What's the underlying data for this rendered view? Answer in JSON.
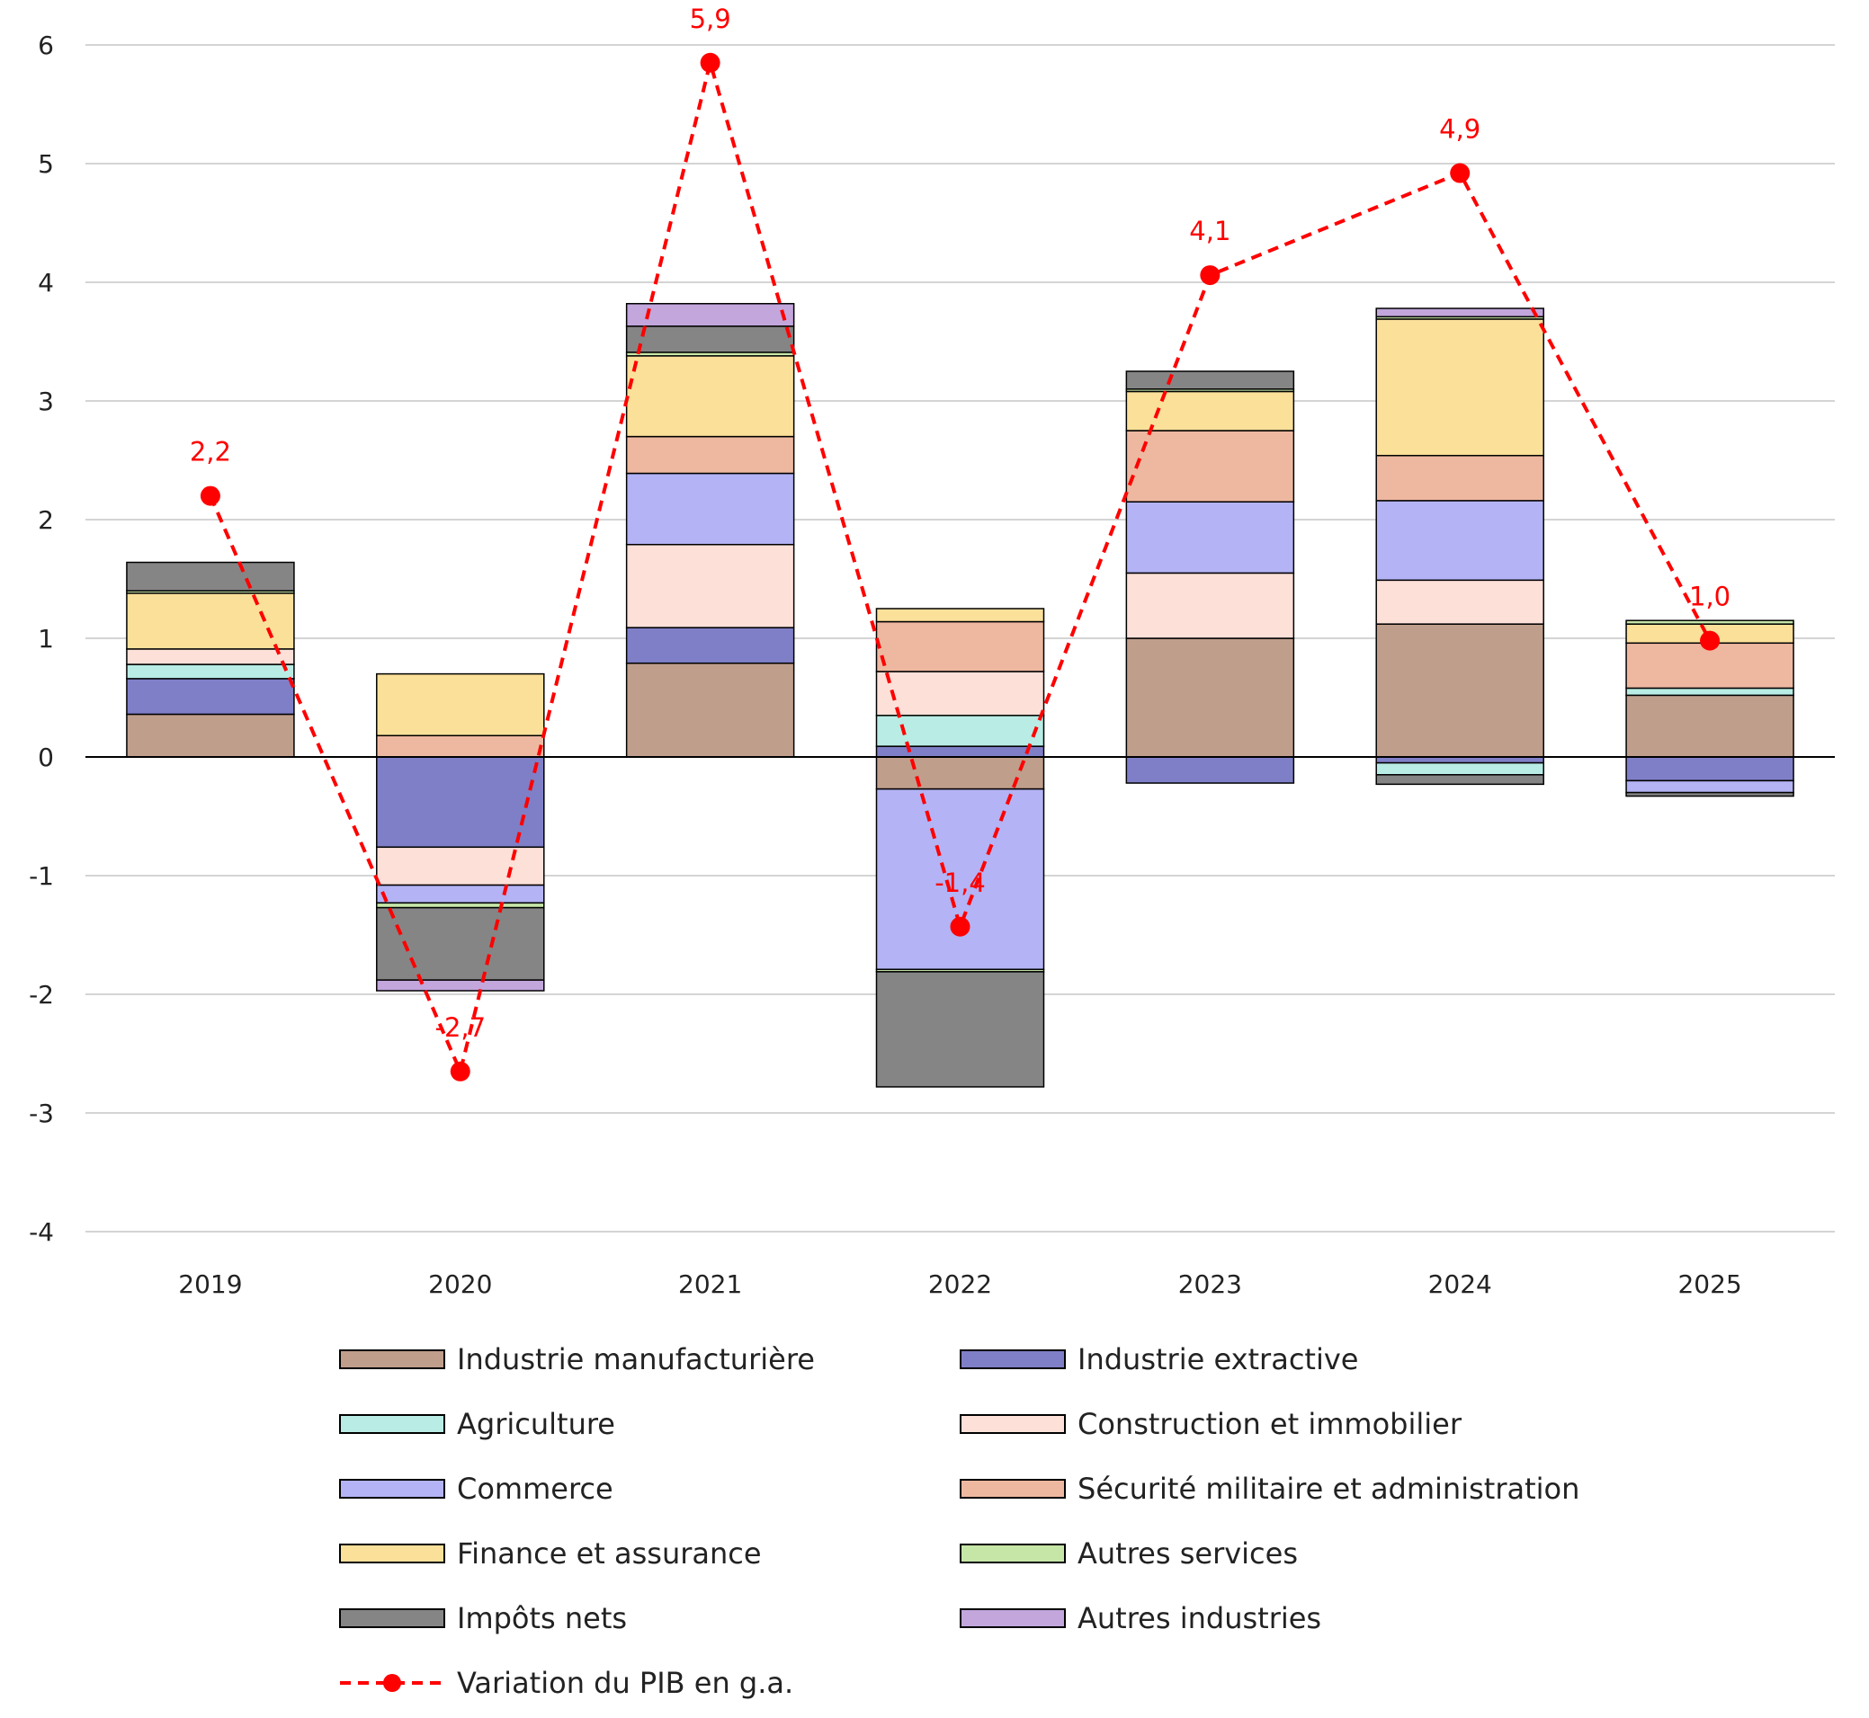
{
  "chart_data": {
    "type": "bar",
    "stacked": true,
    "title": "",
    "xlabel": "",
    "ylabel": "",
    "ylim": [
      -4,
      6
    ],
    "yticks": [
      -4,
      -3,
      -2,
      -1,
      0,
      1,
      2,
      3,
      4,
      5,
      6
    ],
    "ytick_labels": [
      "-4",
      "-3",
      "-2",
      "-1",
      "0",
      "1",
      "2",
      "3",
      "4",
      "5",
      "6"
    ],
    "grid": true,
    "legend_position": "bottom",
    "categories": [
      "2019",
      "2020",
      "2021",
      "2022",
      "2023",
      "2024",
      "2025"
    ],
    "series": [
      {
        "name": "Industrie manufacturière",
        "color": "#c09e8c",
        "values": [
          0.36,
          0.0,
          0.79,
          -0.27,
          1.0,
          1.12,
          0.52
        ]
      },
      {
        "name": "Industrie extractive",
        "color": "#7f7fc8",
        "values": [
          0.3,
          -0.76,
          0.3,
          0.09,
          -0.22,
          -0.05,
          -0.2
        ]
      },
      {
        "name": "Agriculture",
        "color": "#b8ece4",
        "values": [
          0.12,
          0.0,
          0.0,
          0.26,
          0.0,
          -0.1,
          0.06
        ]
      },
      {
        "name": "Construction et immobilier",
        "color": "#fde0d8",
        "values": [
          0.13,
          -0.32,
          0.7,
          0.37,
          0.55,
          0.37,
          0.0
        ]
      },
      {
        "name": "Commerce",
        "color": "#b3b3f5",
        "values": [
          0.0,
          -0.15,
          0.6,
          -1.52,
          0.6,
          0.67,
          -0.1
        ]
      },
      {
        "name": "Sécurité militaire et administration",
        "color": "#eeb8a0",
        "values": [
          0.0,
          0.18,
          0.31,
          0.42,
          0.6,
          0.38,
          0.38
        ]
      },
      {
        "name": "Finance et assurance",
        "color": "#fbe09a",
        "values": [
          0.47,
          0.52,
          0.68,
          0.11,
          0.33,
          1.15,
          0.16
        ]
      },
      {
        "name": "Autres services",
        "color": "#c6e6a8",
        "values": [
          0.02,
          -0.04,
          0.03,
          -0.02,
          0.02,
          0.02,
          0.03
        ]
      },
      {
        "name": "Impôts nets",
        "color": "#858585",
        "values": [
          0.24,
          -0.61,
          0.22,
          -0.97,
          0.15,
          -0.08,
          -0.03
        ]
      },
      {
        "name": "Autres industries",
        "color": "#c2a6dc",
        "values": [
          0.0,
          -0.09,
          0.19,
          0.0,
          0.0,
          0.07,
          0.0
        ]
      }
    ],
    "line_series": {
      "name": "Variation du PIB en g.a.",
      "color": "#ff0000",
      "values": [
        2.2,
        -2.65,
        5.85,
        -1.43,
        4.06,
        4.92,
        0.98
      ],
      "labels": [
        "2,2",
        "-2,7",
        "5,9",
        "-1,4",
        "4,1",
        "4,9",
        "1,0"
      ]
    }
  }
}
